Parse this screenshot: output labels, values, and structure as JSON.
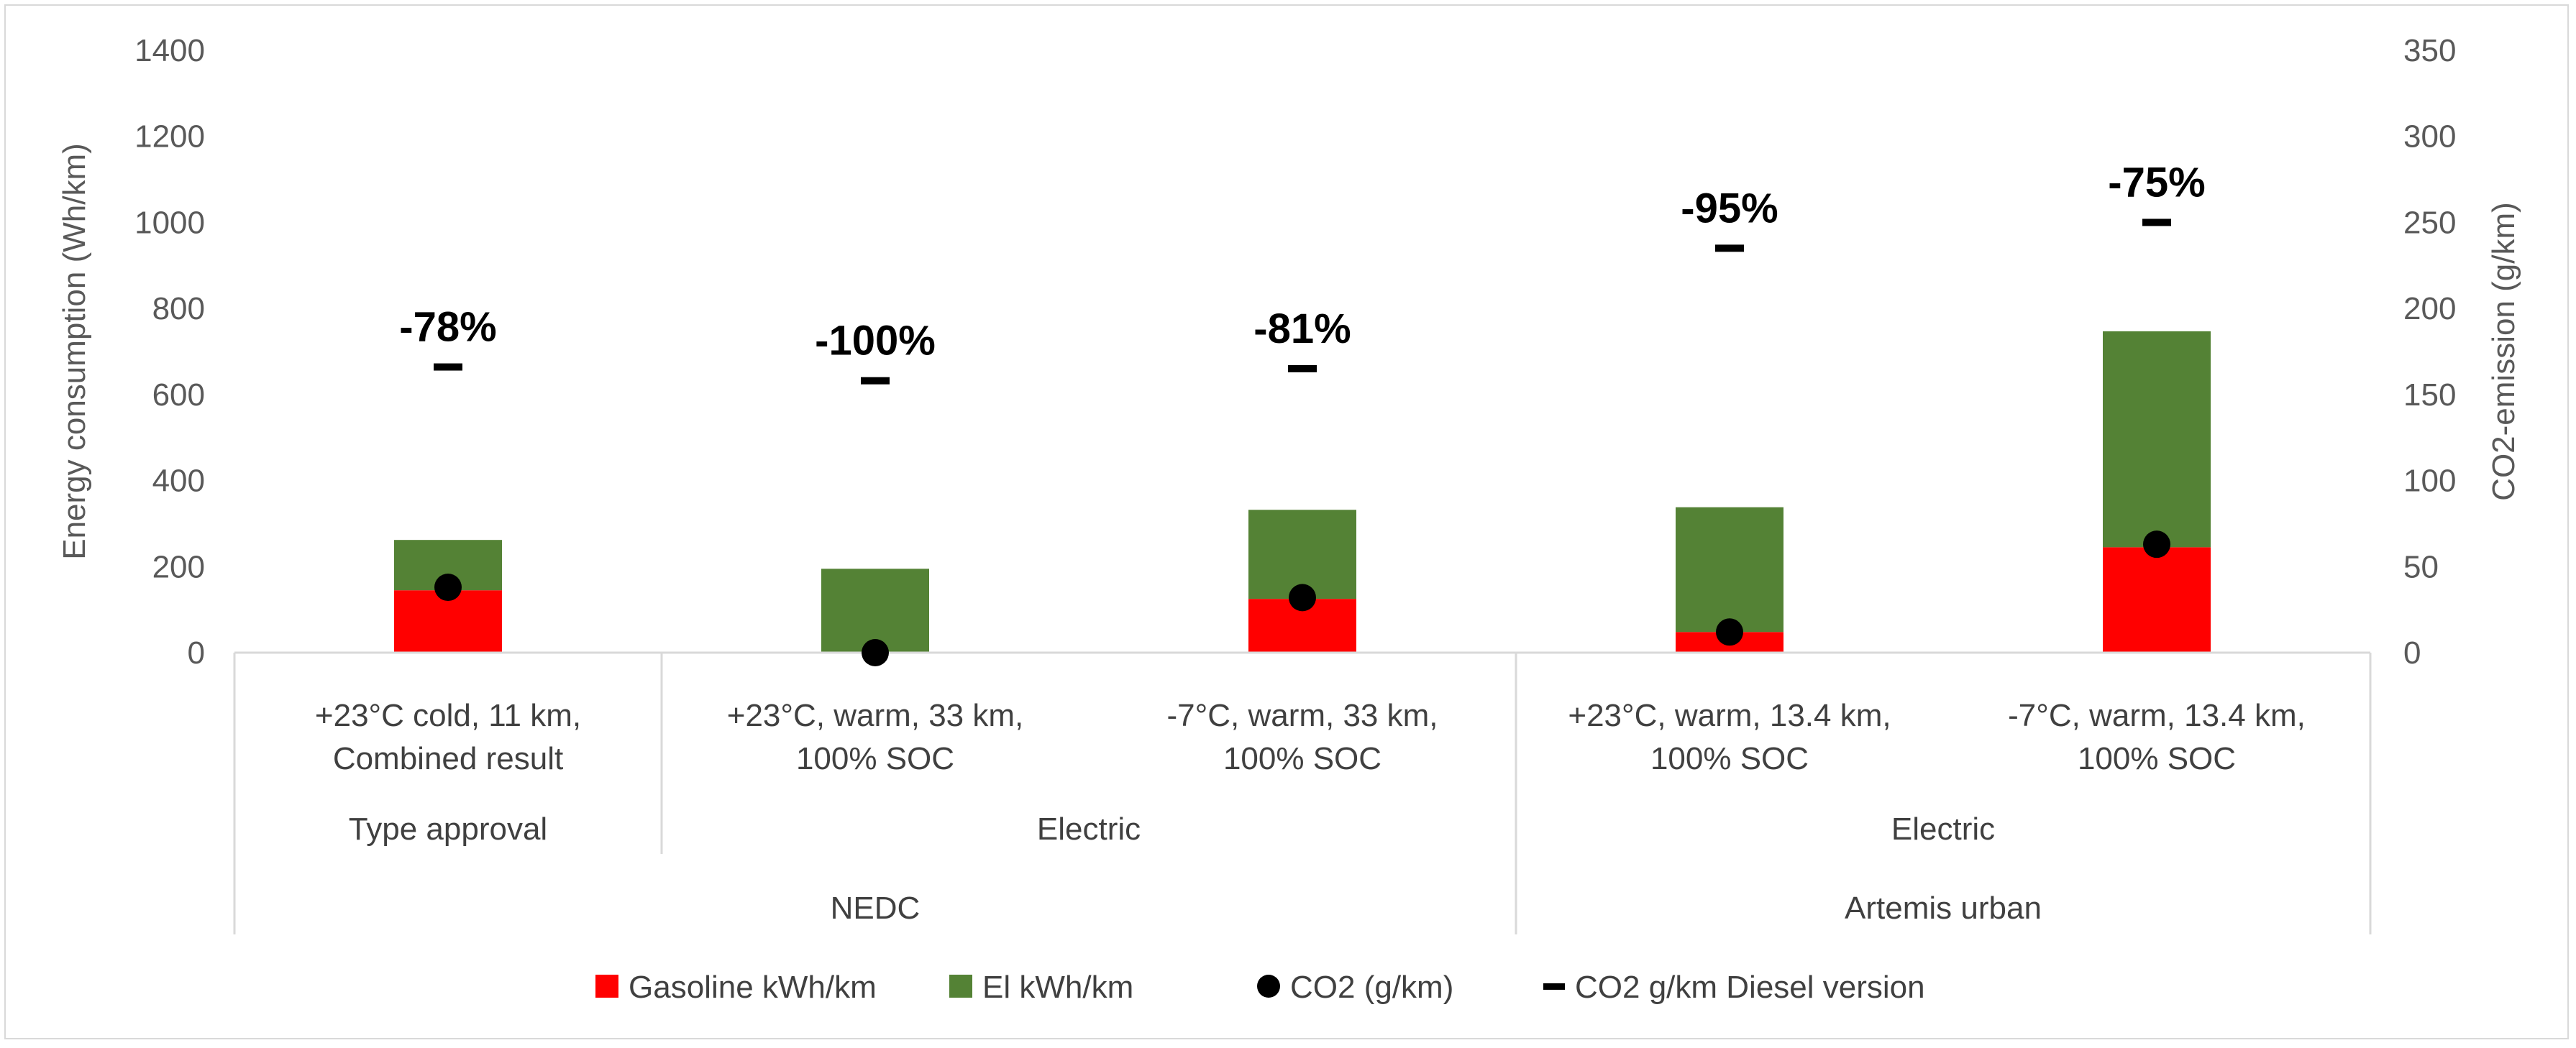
{
  "chart_data": {
    "type": "bar",
    "stacked": true,
    "categories": [
      {
        "line1": "+23°C cold, 11 km,",
        "line2": "Combined result"
      },
      {
        "line1": "+23°C, warm, 33 km,",
        "line2": "100% SOC"
      },
      {
        "line1": "-7°C, warm, 33 km,",
        "line2": "100% SOC"
      },
      {
        "line1": "+23°C, warm, 13.4 km,",
        "line2": "100% SOC"
      },
      {
        "line1": "-7°C, warm, 13.4 km,",
        "line2": "100% SOC"
      }
    ],
    "subgroups": [
      {
        "label": "Type approval",
        "span": [
          0,
          0
        ]
      },
      {
        "label": "Electric",
        "span": [
          1,
          2
        ]
      },
      {
        "label": "Electric",
        "span": [
          3,
          4
        ]
      }
    ],
    "groups": [
      {
        "label": "NEDC",
        "span": [
          0,
          2
        ]
      },
      {
        "label": "Artemis urban",
        "span": [
          3,
          4
        ]
      }
    ],
    "series": [
      {
        "name": "Gasoline kWh/km",
        "kind": "bar",
        "axis": "left",
        "color": "#ff0000",
        "values": [
          145,
          0,
          125,
          48,
          245
        ]
      },
      {
        "name": "El kWh/km",
        "kind": "bar",
        "axis": "left",
        "color": "#548235",
        "values": [
          117,
          195,
          207,
          290,
          502
        ]
      },
      {
        "name": "CO2 (g/km)",
        "kind": "dot",
        "axis": "right",
        "color": "#000000",
        "values": [
          38,
          0,
          32,
          12,
          63
        ]
      },
      {
        "name": "CO2 g/km Diesel version",
        "kind": "dash",
        "axis": "right",
        "color": "#000000",
        "values": [
          166,
          158,
          165,
          235,
          250
        ]
      }
    ],
    "annotations": [
      "-78%",
      "-100%",
      "-81%",
      "-95%",
      "-75%"
    ],
    "y_left": {
      "label": "Energy consumption (Wh/km)",
      "ylim": [
        0,
        1400
      ],
      "ticks": [
        "0",
        "200",
        "400",
        "600",
        "800",
        "1000",
        "1200",
        "1400"
      ]
    },
    "y_right": {
      "label": "CO2-emission (g/km)",
      "ylim": [
        0,
        350
      ],
      "ticks": [
        "0",
        "50",
        "100",
        "150",
        "200",
        "250",
        "300",
        "350"
      ]
    },
    "grid": false,
    "legend_position": "bottom"
  }
}
